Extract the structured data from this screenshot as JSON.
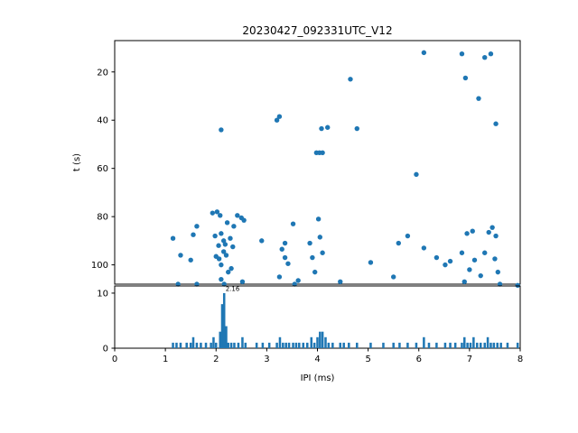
{
  "figure": {
    "title": "20230427_092331UTC_V12",
    "background": "#ffffff",
    "accent_color": "#1f77b4",
    "axis_color": "#000000"
  },
  "chart_data": [
    {
      "type": "scatter",
      "title": "20230427_092331UTC_V12",
      "xlabel": "",
      "ylabel": "t (s)",
      "xlim": [
        0,
        8
      ],
      "ylim": [
        7,
        108
      ],
      "y_inverted": true,
      "yticks": [
        20,
        40,
        60,
        80,
        100
      ],
      "grid": false,
      "legend": "none",
      "marker_color": "#1f77b4",
      "points": [
        [
          1.15,
          89
        ],
        [
          1.25,
          108
        ],
        [
          1.3,
          96
        ],
        [
          1.5,
          98
        ],
        [
          1.55,
          87.5
        ],
        [
          1.62,
          84
        ],
        [
          1.62,
          108
        ],
        [
          1.93,
          78.5
        ],
        [
          1.98,
          88
        ],
        [
          2.0,
          96.5
        ],
        [
          2.02,
          78
        ],
        [
          2.05,
          92
        ],
        [
          2.06,
          97.5
        ],
        [
          2.08,
          79.5
        ],
        [
          2.1,
          44
        ],
        [
          2.1,
          87
        ],
        [
          2.1,
          100
        ],
        [
          2.1,
          106
        ],
        [
          2.15,
          90
        ],
        [
          2.15,
          94.5
        ],
        [
          2.16,
          108
        ],
        [
          2.18,
          91.5
        ],
        [
          2.2,
          96
        ],
        [
          2.22,
          82.5
        ],
        [
          2.24,
          103
        ],
        [
          2.28,
          89
        ],
        [
          2.3,
          101.5
        ],
        [
          2.33,
          92.5
        ],
        [
          2.35,
          84
        ],
        [
          2.42,
          79.5
        ],
        [
          2.5,
          80.5
        ],
        [
          2.52,
          107
        ],
        [
          2.55,
          81.5
        ],
        [
          2.9,
          90
        ],
        [
          3.2,
          40
        ],
        [
          3.25,
          38.5
        ],
        [
          3.25,
          105
        ],
        [
          3.3,
          93.5
        ],
        [
          3.36,
          91
        ],
        [
          3.36,
          97
        ],
        [
          3.42,
          99.5
        ],
        [
          3.52,
          83
        ],
        [
          3.55,
          108
        ],
        [
          3.62,
          106.5
        ],
        [
          3.85,
          91
        ],
        [
          3.9,
          97
        ],
        [
          3.95,
          103
        ],
        [
          3.98,
          53.5
        ],
        [
          4.02,
          81
        ],
        [
          4.04,
          53.5
        ],
        [
          4.05,
          88.5
        ],
        [
          4.08,
          43.5
        ],
        [
          4.1,
          53.5
        ],
        [
          4.1,
          95
        ],
        [
          4.2,
          43
        ],
        [
          4.45,
          107
        ],
        [
          4.65,
          23
        ],
        [
          4.78,
          43.5
        ],
        [
          5.05,
          99
        ],
        [
          5.5,
          105
        ],
        [
          5.6,
          91
        ],
        [
          5.78,
          88
        ],
        [
          5.95,
          62.5
        ],
        [
          6.1,
          12
        ],
        [
          6.1,
          93
        ],
        [
          6.35,
          97
        ],
        [
          6.52,
          100
        ],
        [
          6.62,
          98.5
        ],
        [
          6.85,
          12.5
        ],
        [
          6.85,
          95
        ],
        [
          6.9,
          107
        ],
        [
          6.92,
          22.5
        ],
        [
          6.95,
          87
        ],
        [
          7.0,
          102
        ],
        [
          7.06,
          86
        ],
        [
          7.1,
          98
        ],
        [
          7.18,
          31
        ],
        [
          7.22,
          104.5
        ],
        [
          7.3,
          14
        ],
        [
          7.3,
          95
        ],
        [
          7.38,
          86.5
        ],
        [
          7.42,
          12.5
        ],
        [
          7.45,
          84.5
        ],
        [
          7.5,
          97.5
        ],
        [
          7.52,
          41.5
        ],
        [
          7.52,
          88
        ],
        [
          7.56,
          103
        ],
        [
          7.6,
          108
        ],
        [
          7.95,
          108.5
        ]
      ]
    },
    {
      "type": "bar",
      "title": "",
      "xlabel": "IPI (ms)",
      "ylabel": "",
      "xlim": [
        0,
        8
      ],
      "ylim": [
        0,
        11.3
      ],
      "xticks": [
        0,
        1,
        2,
        3,
        4,
        5,
        6,
        7,
        8
      ],
      "yticks": [
        0,
        10
      ],
      "grid": false,
      "bar_color": "#1f77b4",
      "bar_width": 0.045,
      "annotation": {
        "text": "2.16",
        "x": 2.16,
        "y": 10.4
      },
      "bars": [
        [
          1.15,
          1
        ],
        [
          1.22,
          1
        ],
        [
          1.3,
          1
        ],
        [
          1.42,
          1
        ],
        [
          1.5,
          1
        ],
        [
          1.55,
          2
        ],
        [
          1.62,
          1
        ],
        [
          1.7,
          1
        ],
        [
          1.8,
          1
        ],
        [
          1.9,
          1
        ],
        [
          1.95,
          2
        ],
        [
          2.0,
          1
        ],
        [
          2.08,
          3
        ],
        [
          2.12,
          8
        ],
        [
          2.16,
          10
        ],
        [
          2.2,
          4
        ],
        [
          2.24,
          1
        ],
        [
          2.3,
          1
        ],
        [
          2.36,
          1
        ],
        [
          2.44,
          1
        ],
        [
          2.52,
          2
        ],
        [
          2.58,
          1
        ],
        [
          2.8,
          1
        ],
        [
          2.92,
          1
        ],
        [
          3.05,
          1
        ],
        [
          3.2,
          1
        ],
        [
          3.26,
          2
        ],
        [
          3.32,
          1
        ],
        [
          3.38,
          1
        ],
        [
          3.44,
          1
        ],
        [
          3.52,
          1
        ],
        [
          3.58,
          1
        ],
        [
          3.64,
          1
        ],
        [
          3.72,
          1
        ],
        [
          3.8,
          1
        ],
        [
          3.88,
          2
        ],
        [
          3.94,
          1
        ],
        [
          4.0,
          2
        ],
        [
          4.05,
          3
        ],
        [
          4.1,
          3
        ],
        [
          4.16,
          2
        ],
        [
          4.22,
          1
        ],
        [
          4.3,
          1
        ],
        [
          4.45,
          1
        ],
        [
          4.52,
          1
        ],
        [
          4.62,
          1
        ],
        [
          4.78,
          1
        ],
        [
          5.05,
          1
        ],
        [
          5.3,
          1
        ],
        [
          5.5,
          1
        ],
        [
          5.62,
          1
        ],
        [
          5.78,
          1
        ],
        [
          5.95,
          1
        ],
        [
          6.1,
          2
        ],
        [
          6.2,
          1
        ],
        [
          6.35,
          1
        ],
        [
          6.52,
          1
        ],
        [
          6.62,
          1
        ],
        [
          6.72,
          1
        ],
        [
          6.85,
          1
        ],
        [
          6.9,
          2
        ],
        [
          6.96,
          1
        ],
        [
          7.02,
          1
        ],
        [
          7.08,
          2
        ],
        [
          7.15,
          1
        ],
        [
          7.22,
          1
        ],
        [
          7.3,
          1
        ],
        [
          7.36,
          2
        ],
        [
          7.42,
          1
        ],
        [
          7.48,
          1
        ],
        [
          7.55,
          1
        ],
        [
          7.62,
          1
        ],
        [
          7.75,
          1
        ],
        [
          7.95,
          1
        ]
      ]
    }
  ]
}
